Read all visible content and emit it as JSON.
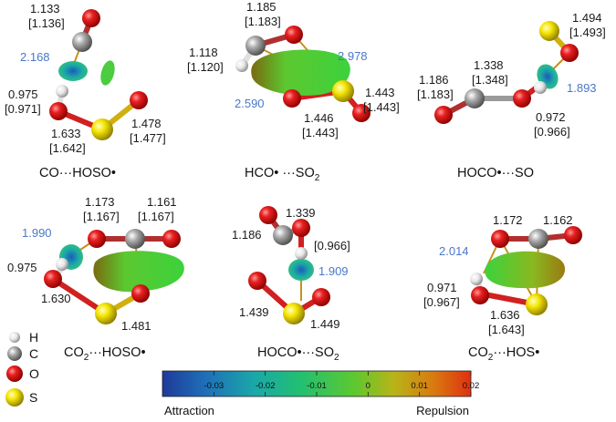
{
  "colors": {
    "H": "#f4f4f4",
    "C": "#9a9a9a",
    "O": "#e01010",
    "S": "#f0e000",
    "bond_line": "#c8901c",
    "hbond_label": "#4a78c8"
  },
  "panels": [
    {
      "id": "a",
      "label": "CO···HOSO•",
      "lengths": [
        "1.133",
        "[1.136]",
        "2.168",
        "0.975",
        "[0.971]",
        "1.478",
        "[1.477]",
        "1.633",
        "[1.642]"
      ]
    },
    {
      "id": "b",
      "label_main": "HCO• ···SO",
      "label_sub": "2",
      "lengths": [
        "1.185",
        "[1.183]",
        "1.118",
        "[1.120]",
        "2.978",
        "2.590",
        "1.443",
        "[1.443]",
        "1.446",
        "[1.443]"
      ]
    },
    {
      "id": "c",
      "label": "HOCO•···SO",
      "lengths": [
        "1.494",
        "[1.493]",
        "1.338",
        "[1.348]",
        "1.186",
        "[1.183]",
        "1.893",
        "0.972",
        "[0.966]"
      ]
    },
    {
      "id": "d",
      "label_pre": "CO",
      "label_sub": "2",
      "label_post": "···HOSO•",
      "lengths": [
        "1.173",
        "[1.167]",
        "1.161",
        "[1.167]",
        "1.990",
        "0.975",
        "1.630",
        "1.481"
      ]
    },
    {
      "id": "e",
      "label_main": "HOCO•···SO",
      "label_sub": "2",
      "lengths": [
        "1.339",
        "1.186",
        "[0.966]",
        "1.909",
        "1.439",
        "1.449"
      ]
    },
    {
      "id": "f",
      "label_pre": "CO",
      "label_sub": "2",
      "label_post": "···HOS•",
      "lengths": [
        "1.172",
        "1.162",
        "2.014",
        "0.971",
        "[0.967]",
        "1.636",
        "[1.643]"
      ]
    }
  ],
  "legend": [
    {
      "symbol": "H",
      "color": "#f4f4f4"
    },
    {
      "symbol": "C",
      "color": "#9a9a9a"
    },
    {
      "symbol": "O",
      "color": "#e01010"
    },
    {
      "symbol": "S",
      "color": "#f0e000"
    }
  ],
  "colorbar": {
    "ticks": [
      -0.03,
      -0.02,
      -0.01,
      0,
      0.01,
      0.02
    ],
    "tick_labels": [
      "-0.03",
      "-0.02",
      "-0.01",
      "0",
      "0.01",
      "0.02"
    ],
    "range": [
      -0.04,
      0.02
    ],
    "left_label": "Attraction",
    "right_label": "Repulsion",
    "stops": [
      "#1e3a9a",
      "#1f6fb8",
      "#1aa8a8",
      "#22c070",
      "#5cc830",
      "#b8b418",
      "#d87a10",
      "#e03010"
    ]
  }
}
